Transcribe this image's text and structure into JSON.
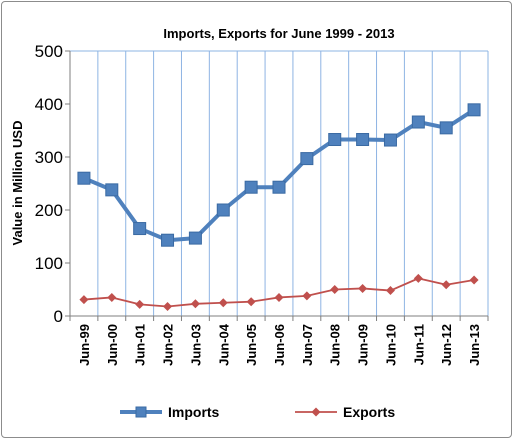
{
  "chart_data": {
    "type": "line",
    "title": "Imports, Exports for June 1999 - 2013",
    "xlabel": "",
    "ylabel": "Value in Million USD",
    "categories": [
      "Jun-99",
      "Jun-00",
      "Jun-01",
      "Jun-02",
      "Jun-03",
      "Jun-04",
      "Jun-05",
      "Jun-06",
      "Jun-07",
      "Jun-08",
      "Jun-09",
      "Jun-10",
      "Jun-11",
      "Jun-12",
      "Jun-13"
    ],
    "ylim": [
      0,
      500
    ],
    "yticks": [
      "0",
      "100",
      "200",
      "300",
      "400",
      "500"
    ],
    "grid": "vertical",
    "legend_position": "bottom",
    "series": [
      {
        "name": "Imports",
        "color": "#4f81bd",
        "marker": "square",
        "values": [
          260,
          238,
          165,
          143,
          147,
          200,
          243,
          243,
          297,
          333,
          333,
          332,
          366,
          355,
          389
        ]
      },
      {
        "name": "Exports",
        "color": "#c0504d",
        "marker": "diamond",
        "values": [
          31,
          35,
          22,
          18,
          23,
          25,
          27,
          35,
          38,
          50,
          52,
          48,
          71,
          59,
          68
        ]
      }
    ]
  }
}
